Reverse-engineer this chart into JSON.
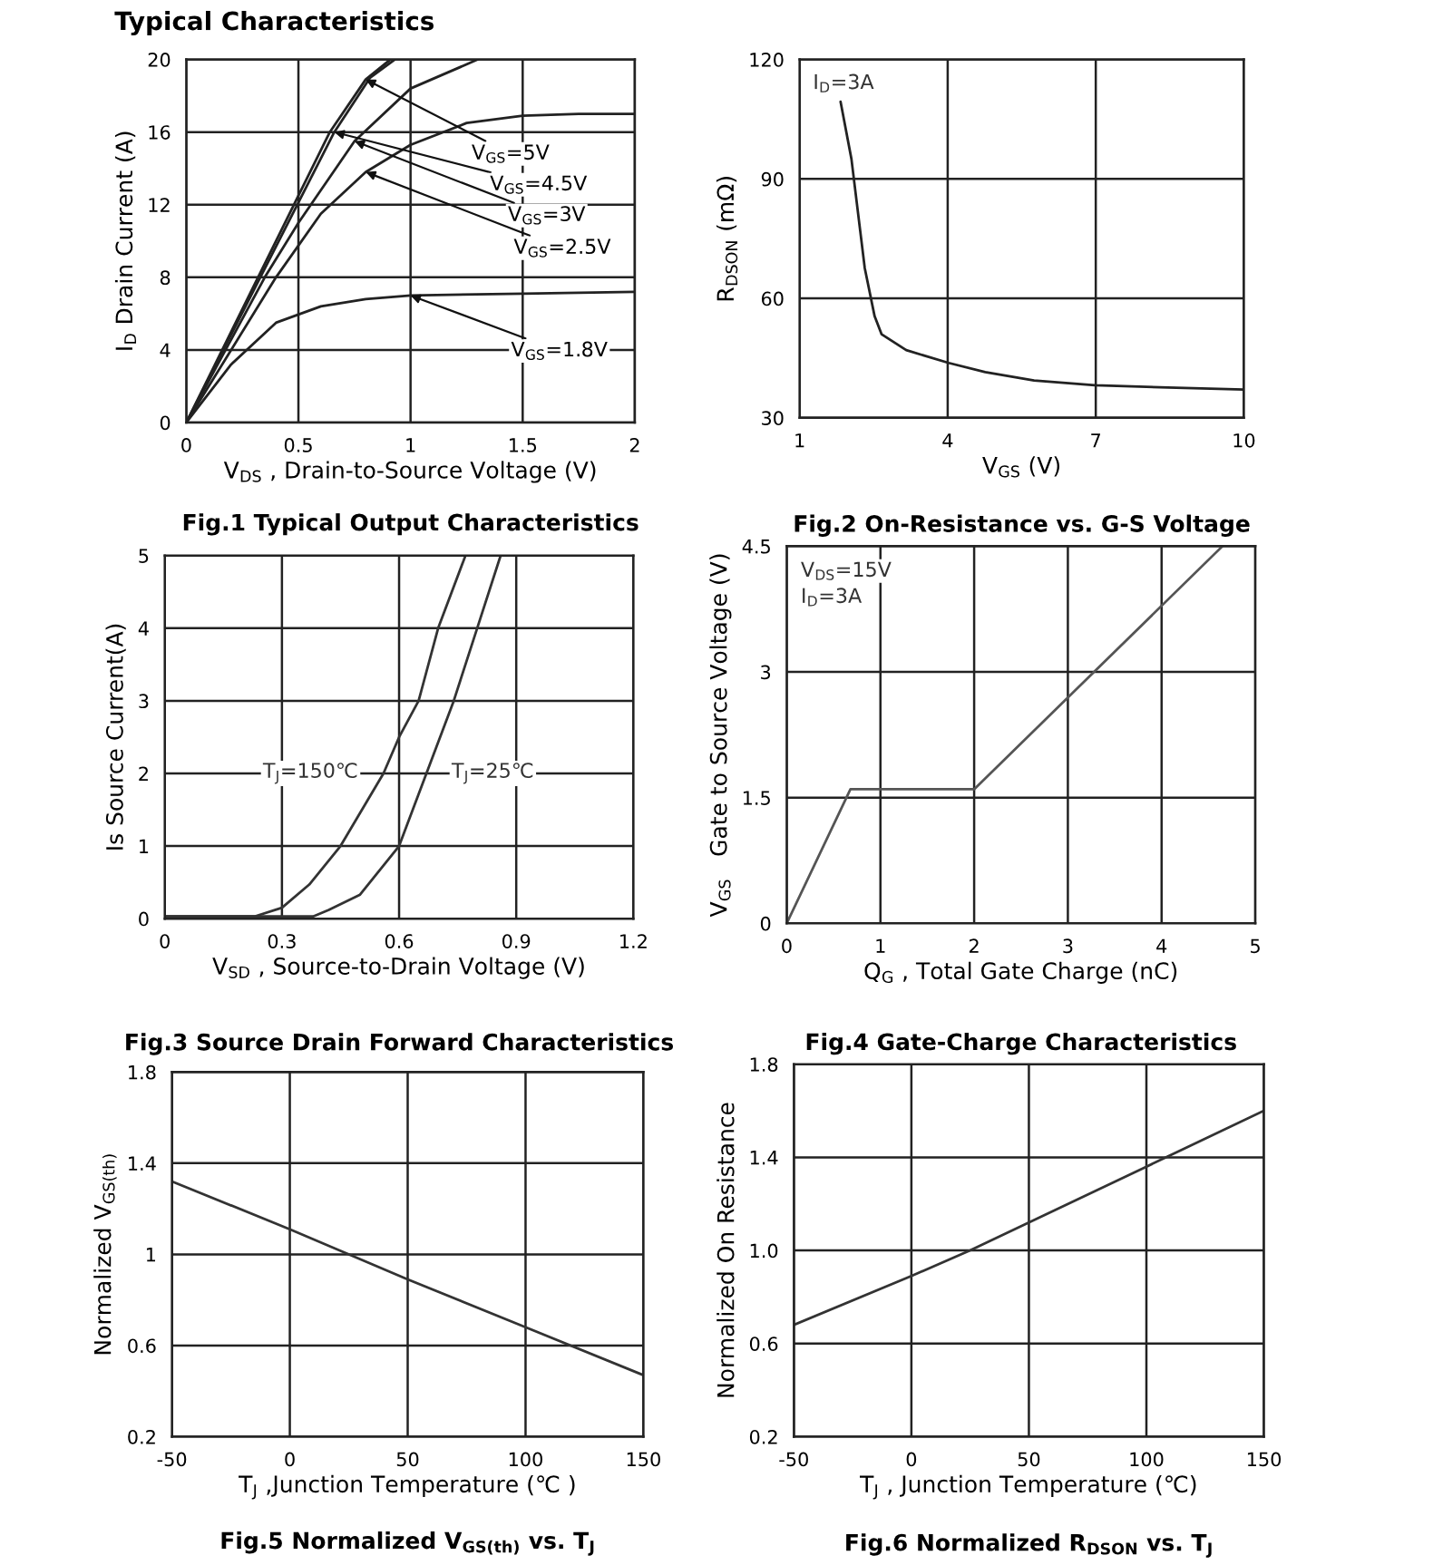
{
  "chart_data": [
    {
      "type": "line",
      "title": "Fig.1 Typical Output Characteristics",
      "xlabel": "V$_{DS}$ , Drain-to-Source Voltage (V)",
      "ylabel": "I$_{D}$ Drain Current (A)",
      "xlim": [
        0,
        2
      ],
      "ylim": [
        0,
        20
      ],
      "xticks": [
        0,
        0.5,
        1,
        1.5,
        2
      ],
      "yticks": [
        0,
        4,
        8,
        12,
        16,
        20
      ],
      "grid": true,
      "series": [
        {
          "color": "#222222",
          "x": [
            0,
            0.32,
            0.64,
            0.8,
            0.91
          ],
          "values": [
            0,
            8,
            16,
            18.9,
            20
          ]
        },
        {
          "color": "#222222",
          "x": [
            0,
            0.33,
            0.66,
            0.82,
            0.93
          ],
          "values": [
            0,
            8,
            16,
            19,
            20
          ]
        },
        {
          "color": "#222222",
          "x": [
            0,
            0.35,
            0.5,
            0.75,
            1.0,
            1.3
          ],
          "values": [
            0,
            8,
            11,
            15.5,
            18.4,
            20
          ]
        },
        {
          "color": "#222222",
          "x": [
            0,
            0.4,
            0.6,
            0.8,
            1.0,
            1.25,
            1.5,
            1.75,
            2
          ],
          "values": [
            0,
            8,
            11.5,
            13.8,
            15.3,
            16.5,
            16.9,
            17,
            17
          ]
        },
        {
          "color": "#222222",
          "x": [
            0,
            0.2,
            0.4,
            0.6,
            0.8,
            1.0,
            1.5,
            2
          ],
          "values": [
            0,
            3.2,
            5.5,
            6.4,
            6.8,
            7,
            7.1,
            7.2
          ]
        }
      ],
      "annotations": [
        "Typical Characteristics",
        {
          "text": "V$_{GS}$=5V",
          "x": 0.8,
          "y": 18.9
        },
        {
          "text": "V$_{GS}$=4.5V",
          "x": 0.66,
          "y": 16
        },
        {
          "text": "V$_{GS}$=3V",
          "x": 0.75,
          "y": 15.5
        },
        {
          "text": "V$_{GS}$=2.5V",
          "x": 0.8,
          "y": 13.8
        },
        {
          "text": "V$_{GS}$=1.8V",
          "x": 1.0,
          "y": 7
        }
      ]
    },
    {
      "type": "line",
      "title": "Fig.2 On-Resistance vs. G-S Voltage",
      "xlabel": "V$_{GS}$ (V)",
      "ylabel": "R$_{DSON}$ (mΩ)",
      "xlim": [
        1,
        10
      ],
      "ylim": [
        30,
        120
      ],
      "xticks": [
        1,
        4,
        7,
        10
      ],
      "yticks": [
        30,
        60,
        90,
        120
      ],
      "grid": true,
      "series": [
        {
          "color": "#222222",
          "x": [
            1.83,
            2.05,
            2.32,
            2.52,
            2.66,
            3.16,
            4.02,
            4.76,
            5.75,
            6.98,
            8.46,
            10
          ],
          "values": [
            109.4,
            95,
            67.6,
            55.5,
            51,
            47,
            43.8,
            41.5,
            39.4,
            38.2,
            37.6,
            37.1
          ]
        }
      ],
      "annotations": [
        "I$_{D}$=3A"
      ]
    },
    {
      "type": "line",
      "title": "Fig.3 Source Drain Forward Characteristics",
      "xlabel": "V$_{SD}$ , Source-to-Drain Voltage (V)",
      "ylabel": "Is Source Current(A)",
      "xlim": [
        0,
        1.2
      ],
      "ylim": [
        0,
        5
      ],
      "xticks": [
        0,
        0.3,
        0.6,
        0.9,
        1.2
      ],
      "yticks": [
        0,
        1,
        2,
        3,
        4,
        5
      ],
      "grid": true,
      "series": [
        {
          "name": "T$_{J}$=150℃",
          "color": "#333333",
          "x": [
            0,
            0.23,
            0.3,
            0.37,
            0.45,
            0.56,
            0.6,
            0.65,
            0.7,
            0.77
          ],
          "values": [
            0.03,
            0.03,
            0.15,
            0.47,
            1.0,
            2.0,
            2.5,
            3.0,
            4.0,
            5.0
          ]
        },
        {
          "name": "T$_{J}$=25℃",
          "color": "#333333",
          "x": [
            0,
            0.38,
            0.42,
            0.5,
            0.6,
            0.67,
            0.74,
            0.8,
            0.86
          ],
          "values": [
            0.03,
            0.03,
            0.12,
            0.33,
            1.0,
            2.0,
            3.0,
            4.0,
            5.0
          ]
        }
      ]
    },
    {
      "type": "line",
      "title": "Fig.4 Gate-Charge Characteristics",
      "xlabel": "Q$_{G}$ , Total Gate Charge (nC)",
      "ylabel": "V$_{GS}$   Gate to Source Voltage (V)",
      "xlim": [
        0,
        5
      ],
      "ylim": [
        0,
        4.5
      ],
      "xticks": [
        0,
        1,
        2,
        3,
        4,
        5
      ],
      "yticks": [
        0,
        1.5,
        3,
        4.5
      ],
      "grid": true,
      "series": [
        {
          "color": "#555555",
          "x": [
            0,
            0.68,
            2,
            4.65
          ],
          "values": [
            0,
            1.6,
            1.6,
            4.5
          ]
        }
      ],
      "annotations": [
        "V$_{DS}$=15V",
        "I$_{D}$=3A"
      ]
    },
    {
      "type": "line",
      "title": "Fig.5 Normalized V$_{GS(th)}$ vs. T$_{J}$",
      "xlabel": "T$_{J}$ ,Junction Temperature (℃ )",
      "ylabel": "Normalized V$_{GS(th)}$",
      "xlim": [
        -50,
        150
      ],
      "ylim": [
        0.2,
        1.8
      ],
      "xticks": [
        -50,
        0,
        50,
        100,
        150
      ],
      "yticks": [
        0.2,
        0.6,
        1,
        1.4,
        1.8
      ],
      "grid": true,
      "series": [
        {
          "color": "#333333",
          "x": [
            -50,
            0,
            50,
            100,
            150
          ],
          "values": [
            1.32,
            1.11,
            0.89,
            0.68,
            0.47
          ]
        }
      ]
    },
    {
      "type": "line",
      "title": "Fig.6 Normalized R$_{DSON}$ vs. T$_{J}$",
      "xlabel": "T$_{J}$ , Junction Temperature (℃)",
      "ylabel": "Normalized On Resistance",
      "xlim": [
        -50,
        150
      ],
      "ylim": [
        0.2,
        1.8
      ],
      "xticks": [
        -50,
        0,
        50,
        100,
        150
      ],
      "yticks": [
        0.2,
        0.6,
        {
          "value": 1,
          "label": "1.0"
        },
        1.4,
        1.8
      ],
      "grid": true,
      "series": [
        {
          "color": "#333333",
          "x": [
            -50,
            0,
            25,
            50,
            100,
            150
          ],
          "values": [
            0.68,
            0.89,
            1.0,
            1.12,
            1.36,
            1.6
          ]
        }
      ]
    }
  ]
}
